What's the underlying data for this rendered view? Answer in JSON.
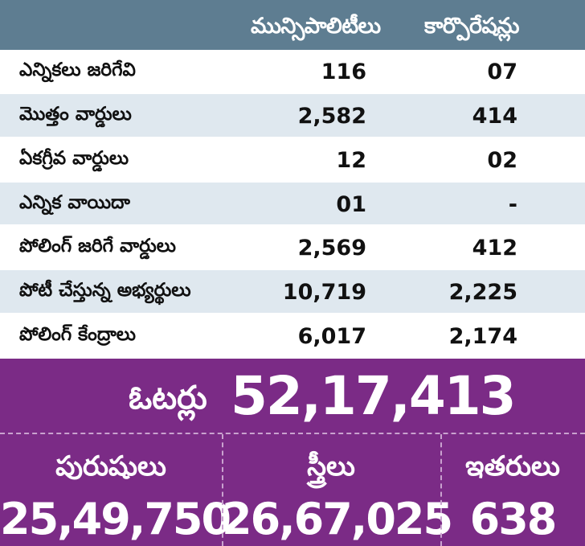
{
  "table": {
    "col1_header": "మున్సిపాలిటీలు",
    "col2_header": "కార్పొరేషన్లు",
    "rows": [
      {
        "label": "ఎన్నికలు జరిగేవి",
        "municipalities": "116",
        "corporations": "07"
      },
      {
        "label": "మొత్తం వార్డులు",
        "municipalities": "2,582",
        "corporations": "414"
      },
      {
        "label": "ఏకగ్రీవ వార్డులు",
        "municipalities": "12",
        "corporations": "02"
      },
      {
        "label": "ఎన్నిక వాయిదా",
        "municipalities": "01",
        "corporations": "-"
      },
      {
        "label": "పోలింగ్ జరిగే వార్డులు",
        "municipalities": "2,569",
        "corporations": "412"
      },
      {
        "label": "పోటీ చేస్తున్న అభ్యర్థులు",
        "municipalities": "10,719",
        "corporations": "2,225"
      },
      {
        "label": "పోలింగ్ కేంద్రాలు",
        "municipalities": "6,017",
        "corporations": "2,174"
      }
    ]
  },
  "voters": {
    "label": "ఓటర్లు",
    "total": "52,17,413",
    "men_label": "పురుషులు",
    "men_value": "25,49,750",
    "women_label": "స్త్రీలు",
    "women_value": "26,67,025",
    "others_label": "ఇతరులు",
    "others_value": "638"
  },
  "colors": {
    "header_bg": "#5e7d91",
    "row_alt_bg": "#dfe8ef",
    "voters_bg": "#7b2b86"
  }
}
